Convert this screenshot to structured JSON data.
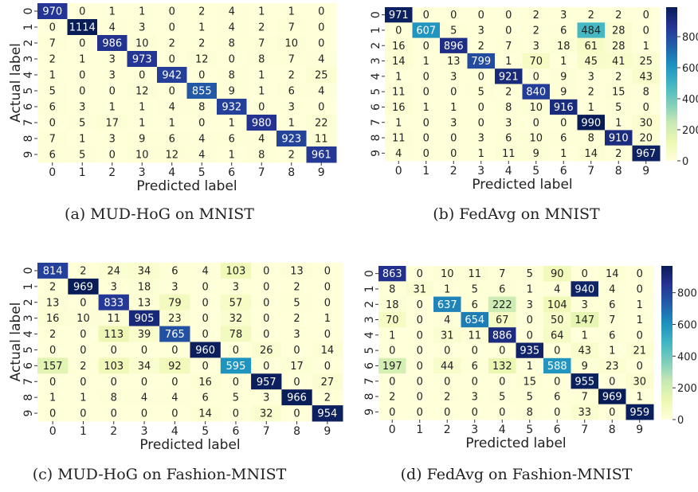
{
  "chart_data": [
    {
      "type": "heatmap",
      "caption": "(a) MUD-HoG on MNIST",
      "xlabel": "Predicted label",
      "ylabel": "Actual label",
      "x_ticks": [
        "0",
        "1",
        "2",
        "3",
        "4",
        "5",
        "6",
        "7",
        "8",
        "9"
      ],
      "y_ticks": [
        "0",
        "1",
        "2",
        "3",
        "4",
        "5",
        "6",
        "7",
        "8",
        "9"
      ],
      "colorbar": false,
      "matrix": [
        [
          970,
          0,
          1,
          1,
          0,
          2,
          4,
          1,
          1,
          0
        ],
        [
          0,
          1114,
          4,
          3,
          0,
          1,
          4,
          2,
          7,
          0
        ],
        [
          7,
          0,
          986,
          10,
          2,
          2,
          8,
          7,
          10,
          0
        ],
        [
          2,
          1,
          3,
          973,
          0,
          12,
          0,
          8,
          7,
          4
        ],
        [
          1,
          0,
          3,
          0,
          942,
          0,
          8,
          1,
          2,
          25
        ],
        [
          5,
          0,
          0,
          12,
          0,
          855,
          9,
          1,
          6,
          4
        ],
        [
          6,
          3,
          1,
          1,
          4,
          8,
          932,
          0,
          3,
          0
        ],
        [
          0,
          5,
          17,
          1,
          1,
          0,
          1,
          980,
          1,
          22
        ],
        [
          7,
          1,
          3,
          9,
          6,
          4,
          6,
          4,
          923,
          11
        ],
        [
          6,
          5,
          0,
          10,
          12,
          4,
          1,
          8,
          2,
          961
        ]
      ]
    },
    {
      "type": "heatmap",
      "caption": "(b) FedAvg on MNIST",
      "xlabel": "Predicted label",
      "ylabel": "",
      "x_ticks": [
        "0",
        "1",
        "2",
        "3",
        "4",
        "5",
        "6",
        "7",
        "8",
        "9"
      ],
      "y_ticks": [
        "0",
        "1",
        "2",
        "3",
        "4",
        "5",
        "6",
        "7",
        "8",
        "9"
      ],
      "colorbar": true,
      "colorbar_ticks": [
        "800",
        "600",
        "400",
        "200",
        "0"
      ],
      "matrix": [
        [
          971,
          0,
          0,
          0,
          0,
          2,
          3,
          2,
          2,
          0
        ],
        [
          0,
          607,
          5,
          3,
          0,
          2,
          6,
          484,
          28,
          0
        ],
        [
          16,
          0,
          896,
          2,
          7,
          3,
          18,
          61,
          28,
          1
        ],
        [
          14,
          1,
          13,
          799,
          1,
          70,
          1,
          45,
          41,
          25
        ],
        [
          1,
          0,
          3,
          0,
          921,
          0,
          9,
          3,
          2,
          43
        ],
        [
          11,
          0,
          0,
          5,
          2,
          840,
          9,
          2,
          15,
          8
        ],
        [
          16,
          1,
          1,
          0,
          8,
          10,
          916,
          1,
          5,
          0
        ],
        [
          1,
          0,
          3,
          0,
          3,
          0,
          0,
          990,
          1,
          30
        ],
        [
          11,
          0,
          0,
          3,
          6,
          10,
          6,
          8,
          910,
          20
        ],
        [
          4,
          0,
          0,
          1,
          11,
          9,
          1,
          14,
          2,
          967
        ]
      ]
    },
    {
      "type": "heatmap",
      "caption": "(c) MUD-HoG on Fashion-MNIST",
      "xlabel": "Predicted label",
      "ylabel": "Actual label",
      "x_ticks": [
        "0",
        "1",
        "2",
        "3",
        "4",
        "5",
        "6",
        "7",
        "8",
        "9"
      ],
      "y_ticks": [
        "0",
        "1",
        "2",
        "3",
        "4",
        "5",
        "6",
        "7",
        "8",
        "9"
      ],
      "colorbar": false,
      "matrix": [
        [
          814,
          2,
          24,
          34,
          6,
          4,
          103,
          0,
          13,
          0
        ],
        [
          2,
          969,
          3,
          18,
          3,
          0,
          3,
          0,
          2,
          0
        ],
        [
          13,
          0,
          833,
          13,
          79,
          0,
          57,
          0,
          5,
          0
        ],
        [
          16,
          10,
          11,
          905,
          23,
          0,
          32,
          0,
          2,
          1
        ],
        [
          2,
          0,
          113,
          39,
          765,
          0,
          78,
          0,
          3,
          0
        ],
        [
          0,
          0,
          0,
          0,
          0,
          960,
          0,
          26,
          0,
          14
        ],
        [
          157,
          2,
          103,
          34,
          92,
          0,
          595,
          0,
          17,
          0
        ],
        [
          0,
          0,
          0,
          0,
          0,
          16,
          0,
          957,
          0,
          27
        ],
        [
          1,
          1,
          8,
          4,
          4,
          6,
          5,
          3,
          966,
          2
        ],
        [
          0,
          0,
          0,
          0,
          0,
          14,
          0,
          32,
          0,
          954
        ]
      ]
    },
    {
      "type": "heatmap",
      "caption": "(d) FedAvg on Fashion-MNIST",
      "xlabel": "Predicted label",
      "ylabel": "",
      "x_ticks": [
        "0",
        "1",
        "2",
        "3",
        "4",
        "5",
        "6",
        "7",
        "8",
        "9"
      ],
      "y_ticks": [
        "0",
        "1",
        "2",
        "3",
        "4",
        "5",
        "6",
        "7",
        "8",
        "9"
      ],
      "colorbar": true,
      "colorbar_ticks": [
        "800",
        "600",
        "400",
        "200",
        "0"
      ],
      "matrix": [
        [
          863,
          0,
          10,
          11,
          7,
          5,
          90,
          0,
          14,
          0
        ],
        [
          8,
          31,
          1,
          5,
          6,
          1,
          4,
          940,
          4,
          0
        ],
        [
          18,
          0,
          637,
          6,
          222,
          3,
          104,
          3,
          6,
          1
        ],
        [
          70,
          0,
          4,
          654,
          67,
          0,
          50,
          147,
          7,
          1
        ],
        [
          1,
          0,
          31,
          11,
          886,
          0,
          64,
          1,
          6,
          0
        ],
        [
          0,
          0,
          0,
          0,
          0,
          935,
          0,
          43,
          1,
          21
        ],
        [
          197,
          0,
          44,
          6,
          132,
          1,
          588,
          9,
          23,
          0
        ],
        [
          0,
          0,
          0,
          0,
          0,
          15,
          0,
          955,
          0,
          30
        ],
        [
          2,
          0,
          2,
          3,
          5,
          5,
          6,
          7,
          969,
          1
        ],
        [
          0,
          0,
          0,
          0,
          0,
          8,
          0,
          33,
          0,
          959
        ]
      ]
    }
  ]
}
